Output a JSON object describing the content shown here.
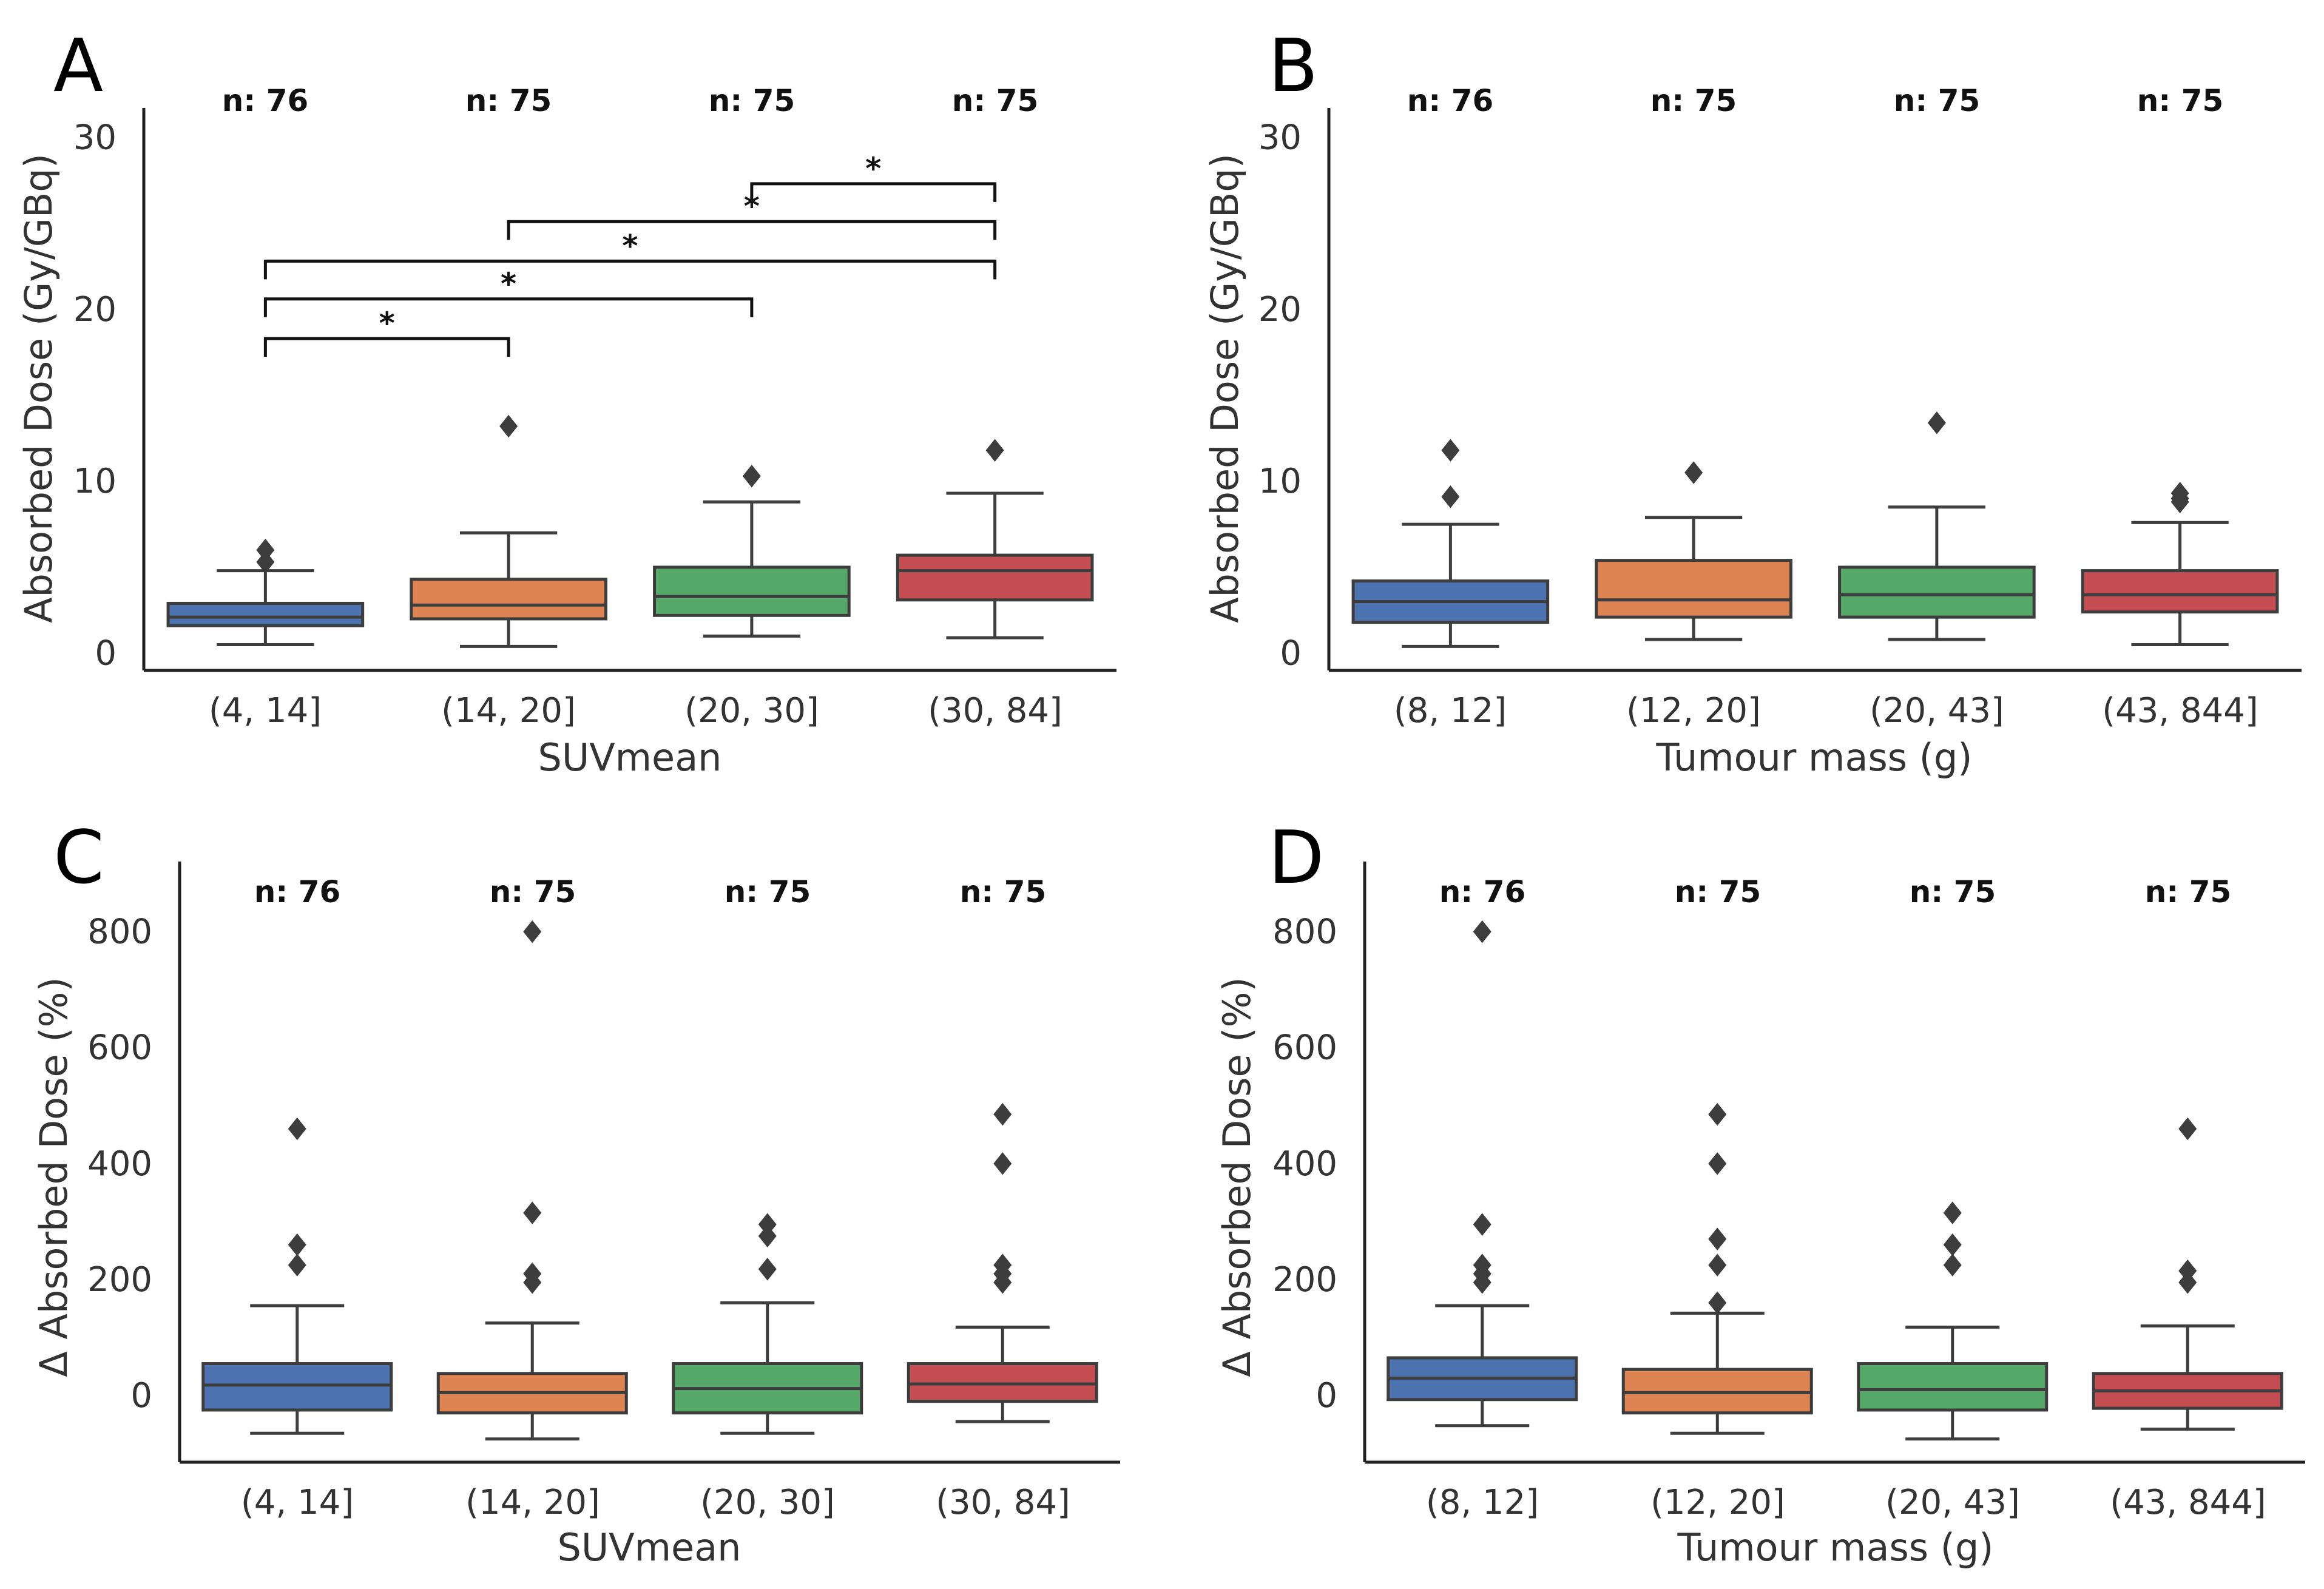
{
  "figure": {
    "colors": {
      "box_fills": [
        "#4c72b0",
        "#dd8452",
        "#55a868",
        "#c44e52"
      ],
      "line": "#3d3d3d",
      "axis": "#222222",
      "bracket": "#111111"
    }
  },
  "chart_data": [
    {
      "panel": "A",
      "type": "box",
      "xlabel": "SUVmean",
      "ylabel": "Absorbed Dose (Gy/GBq)",
      "ylim": [
        -1,
        31
      ],
      "yticks": [
        0,
        10,
        20,
        30
      ],
      "categories": [
        "(4, 14]",
        "(14, 20]",
        "(20, 30]",
        "(30, 84]"
      ],
      "n_labels": [
        "n: 76",
        "n: 75",
        "n: 75",
        "n: 75"
      ],
      "boxes": [
        {
          "whislo": 0.5,
          "q1": 1.6,
          "med": 2.1,
          "q3": 2.9,
          "whishi": 4.8,
          "fliers": [
            5.3,
            6.0
          ]
        },
        {
          "whislo": 0.4,
          "q1": 2.0,
          "med": 2.8,
          "q3": 4.3,
          "whishi": 7.0,
          "fliers": [
            13.2
          ]
        },
        {
          "whislo": 1.0,
          "q1": 2.2,
          "med": 3.3,
          "q3": 5.0,
          "whishi": 8.8,
          "fliers": [
            10.3
          ]
        },
        {
          "whislo": 0.9,
          "q1": 3.1,
          "med": 4.8,
          "q3": 5.7,
          "whishi": 9.3,
          "fliers": [
            11.8
          ]
        }
      ],
      "significance": [
        {
          "from": 2,
          "to": 3,
          "y": 27.3,
          "label": "*"
        },
        {
          "from": 1,
          "to": 3,
          "y": 25.1,
          "label": "*"
        },
        {
          "from": 0,
          "to": 3,
          "y": 22.8,
          "label": "*"
        },
        {
          "from": 0,
          "to": 2,
          "y": 20.6,
          "label": "*"
        },
        {
          "from": 0,
          "to": 1,
          "y": 18.3,
          "label": "*"
        }
      ]
    },
    {
      "panel": "B",
      "type": "box",
      "xlabel": "Tumour mass (g)",
      "ylabel": "Absorbed Dose (Gy/GBq)",
      "ylim": [
        -1,
        31
      ],
      "yticks": [
        0,
        10,
        20,
        30
      ],
      "categories": [
        "(8, 12]",
        "(12, 20]",
        "(20, 43]",
        "(43, 844]"
      ],
      "n_labels": [
        "n: 76",
        "n: 75",
        "n: 75",
        "n: 75"
      ],
      "boxes": [
        {
          "whislo": 0.4,
          "q1": 1.8,
          "med": 3.0,
          "q3": 4.2,
          "whishi": 7.5,
          "fliers": [
            9.1,
            11.8
          ]
        },
        {
          "whislo": 0.8,
          "q1": 2.1,
          "med": 3.1,
          "q3": 5.4,
          "whishi": 7.9,
          "fliers": [
            10.5
          ]
        },
        {
          "whislo": 0.8,
          "q1": 2.1,
          "med": 3.4,
          "q3": 5.0,
          "whishi": 8.5,
          "fliers": [
            13.4
          ]
        },
        {
          "whislo": 0.5,
          "q1": 2.4,
          "med": 3.4,
          "q3": 4.8,
          "whishi": 7.6,
          "fliers": [
            8.8,
            9.0,
            9.3
          ]
        }
      ],
      "significance": []
    },
    {
      "panel": "C",
      "type": "box",
      "xlabel": "SUVmean",
      "ylabel": "Δ Absorbed Dose (%)",
      "ylim": [
        -115,
        900
      ],
      "yticks": [
        0,
        200,
        400,
        600,
        800
      ],
      "categories": [
        "(4, 14]",
        "(14, 20]",
        "(20, 30]",
        "(30, 84]"
      ],
      "n_labels": [
        "n: 76",
        "n: 75",
        "n: 75",
        "n: 75"
      ],
      "boxes": [
        {
          "whislo": -65,
          "q1": -25,
          "med": 18,
          "q3": 55,
          "whishi": 155,
          "fliers": [
            225,
            260,
            460
          ]
        },
        {
          "whislo": -75,
          "q1": -30,
          "med": 5,
          "q3": 38,
          "whishi": 125,
          "fliers": [
            195,
            210,
            315,
            800
          ]
        },
        {
          "whislo": -65,
          "q1": -30,
          "med": 12,
          "q3": 55,
          "whishi": 160,
          "fliers": [
            218,
            275,
            295
          ]
        },
        {
          "whislo": -45,
          "q1": -10,
          "med": 20,
          "q3": 55,
          "whishi": 118,
          "fliers": [
            195,
            210,
            225,
            400,
            485
          ]
        }
      ],
      "significance": []
    },
    {
      "panel": "D",
      "type": "box",
      "xlabel": "Tumour mass (g)",
      "ylabel": "Δ Absorbed Dose (%)",
      "ylim": [
        -115,
        900
      ],
      "yticks": [
        0,
        200,
        400,
        600,
        800
      ],
      "categories": [
        "(8, 12]",
        "(12, 20]",
        "(20, 43]",
        "(43, 844]"
      ],
      "n_labels": [
        "n: 76",
        "n: 75",
        "n: 75",
        "n: 75"
      ],
      "boxes": [
        {
          "whislo": -52,
          "q1": -7,
          "med": 30,
          "q3": 65,
          "whishi": 155,
          "fliers": [
            195,
            210,
            225,
            295,
            800
          ]
        },
        {
          "whislo": -65,
          "q1": -30,
          "med": 5,
          "q3": 45,
          "whishi": 142,
          "fliers": [
            160,
            225,
            270,
            400,
            485
          ]
        },
        {
          "whislo": -75,
          "q1": -25,
          "med": 10,
          "q3": 55,
          "whishi": 118,
          "fliers": [
            225,
            260,
            315
          ]
        },
        {
          "whislo": -58,
          "q1": -22,
          "med": 8,
          "q3": 38,
          "whishi": 120,
          "fliers": [
            195,
            215,
            460
          ]
        }
      ],
      "significance": []
    }
  ]
}
